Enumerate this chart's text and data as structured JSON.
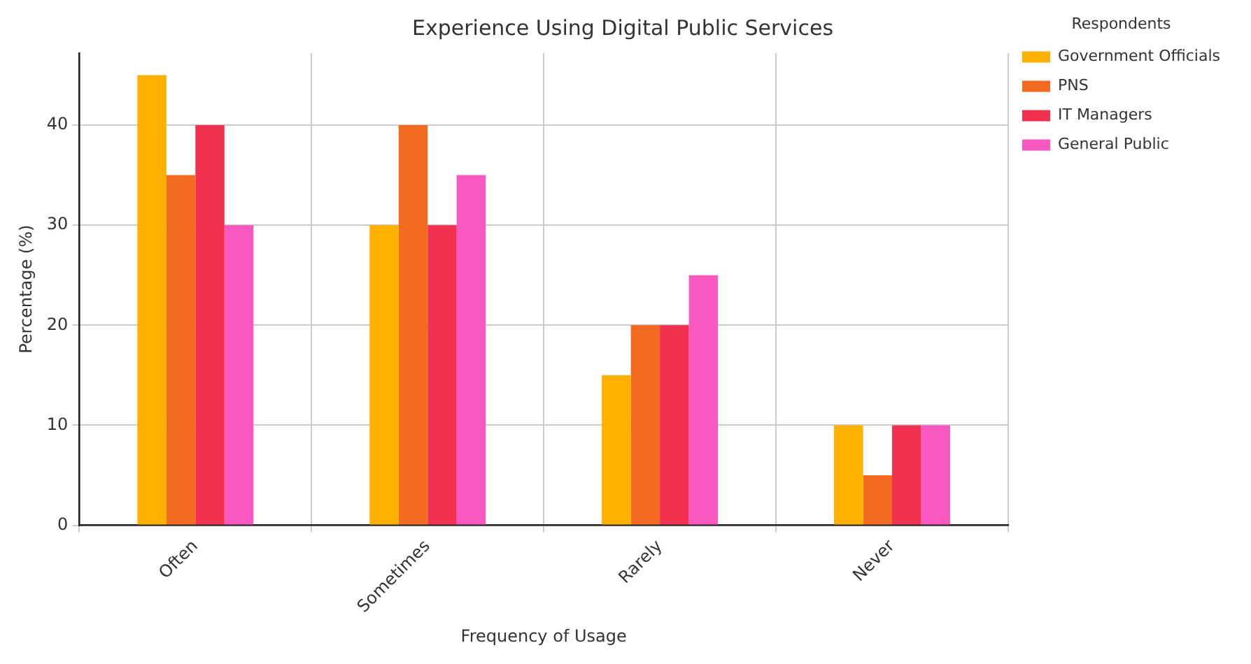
{
  "chart_data": {
    "type": "bar",
    "title": "Experience Using Digital Public Services",
    "xlabel": "Frequency of Usage",
    "ylabel": "Percentage (%)",
    "legend_title": "Respondents",
    "categories": [
      "Often",
      "Sometimes",
      "Rarely",
      "Never"
    ],
    "series": [
      {
        "name": "Government Officials",
        "color": "#ffb000",
        "values": [
          45,
          30,
          15,
          10
        ]
      },
      {
        "name": "PNS",
        "color": "#f26b21",
        "values": [
          35,
          40,
          20,
          5
        ]
      },
      {
        "name": "IT Managers",
        "color": "#f2304f",
        "values": [
          40,
          30,
          20,
          10
        ]
      },
      {
        "name": "General Public",
        "color": "#f859c0",
        "values": [
          30,
          35,
          25,
          10
        ]
      }
    ],
    "ylim": [
      0,
      47.2
    ],
    "yticks": [
      0,
      10,
      20,
      30,
      40
    ],
    "grid": true,
    "legend": "top right"
  }
}
